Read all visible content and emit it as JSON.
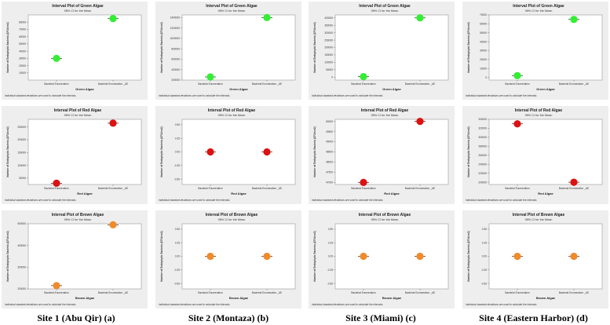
{
  "sites": [
    "Site 1 (Abu Qir) (a)",
    "Site 2 (Montaza) (b)",
    "Site 3 (Miami) (c)",
    "Site 4 (Eastern Harbor) (d)"
  ],
  "colors": {
    "green": "#33ee33",
    "red": "#dd1111",
    "brown": "#f08a2a"
  },
  "chart_data": [
    {
      "type": "scatter",
      "title": "Interval Plot of Green Algae",
      "subtitle": "95% CI for the Mean",
      "xlabel": "Green Algae",
      "ylabel": "Number of Endophytic Bacteria (CFU/cm2)",
      "categories": [
        "Bacterial Enumeration",
        "Bacterial Enumeration _AE"
      ],
      "values": [
        30000,
        85000
      ],
      "ylim": [
        0,
        90000
      ],
      "yticks": [
        10000,
        20000,
        30000,
        40000,
        50000,
        60000,
        70000,
        80000
      ],
      "yticklabels": [
        "10000",
        "20000",
        "30000",
        "40000",
        "50000",
        "60000",
        "70000",
        "80000"
      ],
      "color": "green",
      "footnote": "Individual standard deviations are used to calculate the intervals."
    },
    {
      "type": "scatter",
      "title": "Interval Plot of Green Algae",
      "subtitle": "95% CI for the Mean",
      "xlabel": "Green Algae",
      "ylabel": "Number of Endophytic Bacteria (CFU/cm2)",
      "categories": [
        "Bacterial Enumeration",
        "Bacterial Enumeration _AE"
      ],
      "values": [
        260000,
        1400000
      ],
      "ylim": [
        200000,
        1450000
      ],
      "yticks": [
        200000,
        400000,
        600000,
        800000,
        1000000,
        1200000,
        1400000
      ],
      "yticklabels": [
        "200000",
        "400000",
        "600000",
        "800000",
        "1000000",
        "1200000",
        "1400000"
      ],
      "color": "green",
      "footnote": "Individual standard deviations are used to calculate the intervals."
    },
    {
      "type": "scatter",
      "title": "Interval Plot of Green Algae",
      "subtitle": "95% CI for the Mean",
      "xlabel": "Green Algae",
      "ylabel": "Number of Endophytic Bacteria (CFU/cm2)",
      "categories": [
        "Bacterial Enumeration",
        "Bacterial Enumeration _AE"
      ],
      "values": [
        3000,
        400000
      ],
      "ylim": [
        -20000,
        420000
      ],
      "yticks": [
        0,
        50000,
        100000,
        150000,
        200000,
        250000,
        300000,
        350000,
        400000
      ],
      "yticklabels": [
        "0",
        "50000",
        "100000",
        "150000",
        "200000",
        "250000",
        "300000",
        "350000",
        "400000"
      ],
      "color": "green",
      "footnote": "Individual standard deviations are used to calculate the intervals."
    },
    {
      "type": "scatter",
      "title": "Interval Plot of Green Algae",
      "subtitle": "95% CI for the Mean",
      "xlabel": "Green Algae",
      "ylabel": "Number of Endophytic Bacteria (CFU/cm2)",
      "categories": [
        "Bacterial Enumeration",
        "Bacterial Enumeration _AE"
      ],
      "values": [
        2000,
        65000
      ],
      "ylim": [
        -3000,
        70000
      ],
      "yticks": [
        0,
        10000,
        20000,
        30000,
        40000,
        50000,
        60000,
        70000
      ],
      "yticklabels": [
        "0",
        "10000",
        "20000",
        "30000",
        "40000",
        "50000",
        "60000",
        "70000"
      ],
      "color": "green",
      "footnote": "Individual standard deviations are used to calculate the intervals."
    },
    {
      "type": "scatter",
      "title": "Interval Plot of Red Algae",
      "subtitle": "95% CI for the Mean",
      "xlabel": "Red Algae",
      "ylabel": "Number of Endophytic Bacteria (CFU/cm2)",
      "categories": [
        "Bacterial Enumeration",
        "Bacterial Enumeration _AE"
      ],
      "values": [
        30000,
        265000
      ],
      "ylim": [
        25000,
        280000
      ],
      "yticks": [
        50000,
        100000,
        150000,
        200000,
        250000
      ],
      "yticklabels": [
        "50000",
        "100000",
        "150000",
        "200000",
        "250000"
      ],
      "color": "red",
      "footnote": "Individual standard deviations are used to calculate the intervals."
    },
    {
      "type": "scatter",
      "title": "Interval Plot of Red Algae",
      "subtitle": "95% CI for the Mean",
      "xlabel": "Red Algae",
      "ylabel": "Number of Endophytic Bacteria (CFU/cm2)",
      "categories": [
        "Bacterial Enumeration",
        "Bacterial Enumeration _AE"
      ],
      "values": [
        0,
        0
      ],
      "ylim": [
        -0.6,
        0.6
      ],
      "yticks": [
        -0.5,
        -0.25,
        0,
        0.25,
        0.5
      ],
      "yticklabels": [
        "-0.50",
        "-0.25",
        "0.00",
        "0.25",
        "0.50"
      ],
      "color": "red",
      "footnote": "Individual standard deviations are used to calculate the intervals."
    },
    {
      "type": "scatter",
      "title": "Interval Plot of Red Algae",
      "subtitle": "95% CI for the Mean",
      "xlabel": "Red Algae",
      "ylabel": "Number of Endophytic Bacteria (CFU/cm2)",
      "categories": [
        "Bacterial Enumeration",
        "Bacterial Enumeration _AE"
      ],
      "values": [
        47000,
        50000
      ],
      "ylim": [
        46900,
        50100
      ],
      "yticks": [
        47000,
        47500,
        48000,
        48500,
        49000,
        49500,
        50000
      ],
      "yticklabels": [
        "47000",
        "47500",
        "48000",
        "48500",
        "49000",
        "49500",
        "50000"
      ],
      "color": "red",
      "footnote": "Individual standard deviations are used to calculate the intervals."
    },
    {
      "type": "scatter",
      "title": "Interval Plot of Red Algae",
      "subtitle": "95% CI for the Mean",
      "xlabel": "Red Algae",
      "ylabel": "Number of Endophytic Bacteria (CFU/cm2)",
      "categories": [
        "Bacterial Enumeration",
        "Bacterial Enumeration _AE"
      ],
      "values": [
        330000,
        200000
      ],
      "ylim": [
        195000,
        340000
      ],
      "yticks": [
        200000,
        220000,
        240000,
        260000,
        280000,
        300000,
        320000,
        340000
      ],
      "yticklabels": [
        "200000",
        "220000",
        "240000",
        "260000",
        "280000",
        "300000",
        "320000",
        "340000"
      ],
      "color": "red",
      "footnote": "Individual standard deviations are used to calculate the intervals."
    },
    {
      "type": "scatter",
      "title": "Interval Plot of Brown Algae",
      "subtitle": "95% CI for the Mean",
      "xlabel": "Brown Algae",
      "ylabel": "Number of Endophytic Bacteria (CFU/cm2)",
      "categories": [
        "Bacterial Enumeration",
        "Bacterial Enumeration _AE"
      ],
      "values": [
        215000,
        495000
      ],
      "ylim": [
        200000,
        500000
      ],
      "yticks": [
        200000,
        300000,
        400000,
        500000
      ],
      "yticklabels": [
        "200000",
        "300000",
        "400000",
        "500000"
      ],
      "color": "brown",
      "footnote": "Individual standard deviations are used to calculate the intervals."
    },
    {
      "type": "scatter",
      "title": "Interval Plot of Brown Algae",
      "subtitle": "95% CI for the Mean",
      "xlabel": "Brown Algae",
      "ylabel": "Number of Endophytic Bacteria (CFU/cm2)",
      "categories": [
        "Bacterial Enumeration",
        "Bacterial Enumeration _AE"
      ],
      "values": [
        0,
        0
      ],
      "ylim": [
        -0.6,
        0.6
      ],
      "yticks": [
        -0.5,
        -0.25,
        0,
        0.25,
        0.5
      ],
      "yticklabels": [
        "-0.50",
        "-0.25",
        "0.00",
        "0.25",
        "0.50"
      ],
      "color": "brown",
      "footnote": "Individual standard deviations are used to calculate the intervals."
    },
    {
      "type": "scatter",
      "title": "Interval Plot of Brown Algae",
      "subtitle": "95% CI for the Mean",
      "xlabel": "Brown Algae",
      "ylabel": "Number of Endophytic Bacteria (CFU/cm2)",
      "categories": [
        "Bacterial Enumeration",
        "Bacterial Enumeration _AE"
      ],
      "values": [
        0,
        0
      ],
      "ylim": [
        -0.6,
        0.6
      ],
      "yticks": [
        -0.5,
        -0.25,
        0,
        0.25,
        0.5
      ],
      "yticklabels": [
        "-0.50",
        "-0.25",
        "0.00",
        "0.25",
        "0.50"
      ],
      "color": "brown",
      "footnote": "Individual standard deviations are used to calculate the intervals."
    },
    {
      "type": "scatter",
      "title": "Interval Plot of Brown Algae",
      "subtitle": "95% CI for the Mean",
      "xlabel": "Brown Algae",
      "ylabel": "Number of Endophytic Bacteria (CFU/cm2)",
      "categories": [
        "Bacterial Enumeration",
        "Bacterial Enumeration _AE"
      ],
      "values": [
        0,
        0
      ],
      "ylim": [
        -0.6,
        0.6
      ],
      "yticks": [
        -0.5,
        -0.25,
        0,
        0.25,
        0.5
      ],
      "yticklabels": [
        "-0.50",
        "-0.25",
        "0.00",
        "0.25",
        "0.50"
      ],
      "color": "brown",
      "footnote": "Individual standard deviations are used to calculate the intervals."
    }
  ]
}
